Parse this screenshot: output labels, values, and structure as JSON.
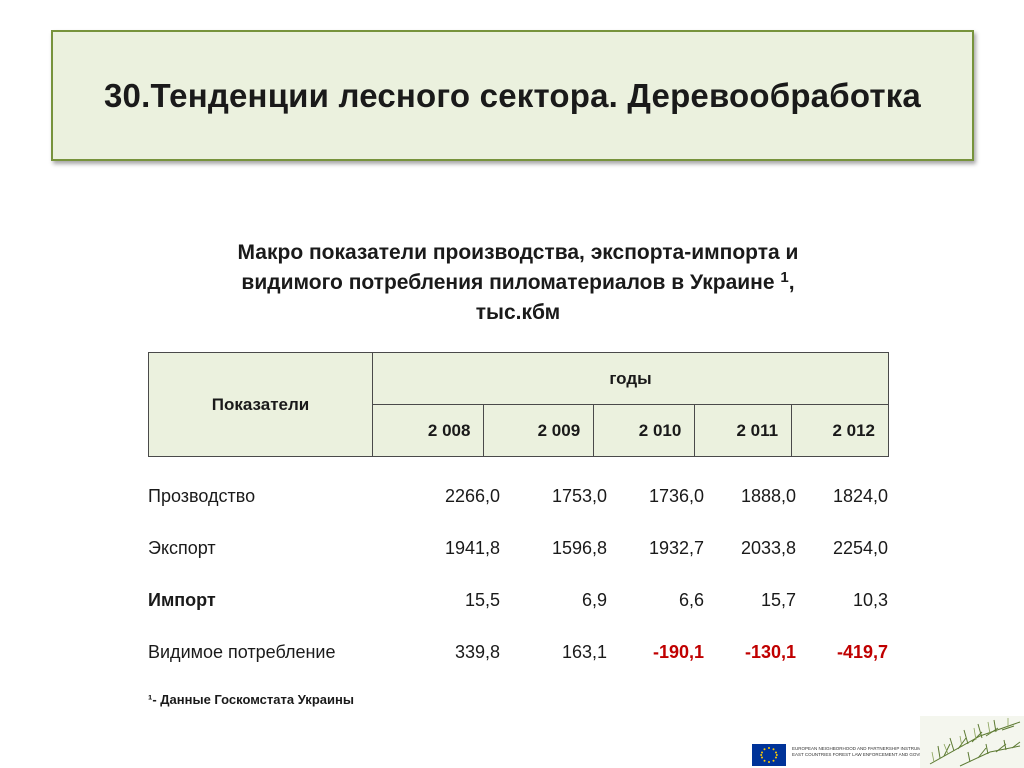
{
  "slide": {
    "title": "30.Тенденции лесного сектора. Деревообработка"
  },
  "caption": {
    "line1": "Макро показатели производства, экспорта-импорта и",
    "line2": "видимого потребления пиломатериалов в Украине",
    "footnote_mark": "1",
    "line2_suffix": ",",
    "line3": "тыс.кбм"
  },
  "table": {
    "indicator_header": "Показатели",
    "years_header": "годы",
    "years": [
      "2 008",
      "2 009",
      "2 010",
      "2 011",
      "2 012"
    ],
    "rows": [
      {
        "label": "Прозводство",
        "values": [
          "2266,0",
          "1753,0",
          "1736,0",
          "1888,0",
          "1824,0"
        ]
      },
      {
        "label": "Экспорт",
        "values": [
          "1941,8",
          "1596,8",
          "1932,7",
          "2033,8",
          "2254,0"
        ]
      },
      {
        "label": "Импорт",
        "values": [
          "15,5",
          "6,9",
          "6,6",
          "15,7",
          "10,3"
        ]
      },
      {
        "label": "Видимое потребление",
        "values": [
          "339,8",
          "163,1",
          "-190,1",
          "-130,1",
          "-419,7"
        ]
      }
    ]
  },
  "footnote": "¹- Данные Госкомстата Украины",
  "footer": {
    "program_line1": "EUROPEAN NEIGHBORHOOD AND PARTNERSHIP INSTRUMENT",
    "program_line2": "EAST COUNTRIES FOREST LAW ENFORCEMENT AND GOVERNANCE II PROGRAM"
  },
  "colors": {
    "title_bg": "#ebf1de",
    "title_border": "#77933c",
    "negative": "#c00000",
    "eu_blue": "#003399",
    "eu_gold": "#ffcc00"
  }
}
